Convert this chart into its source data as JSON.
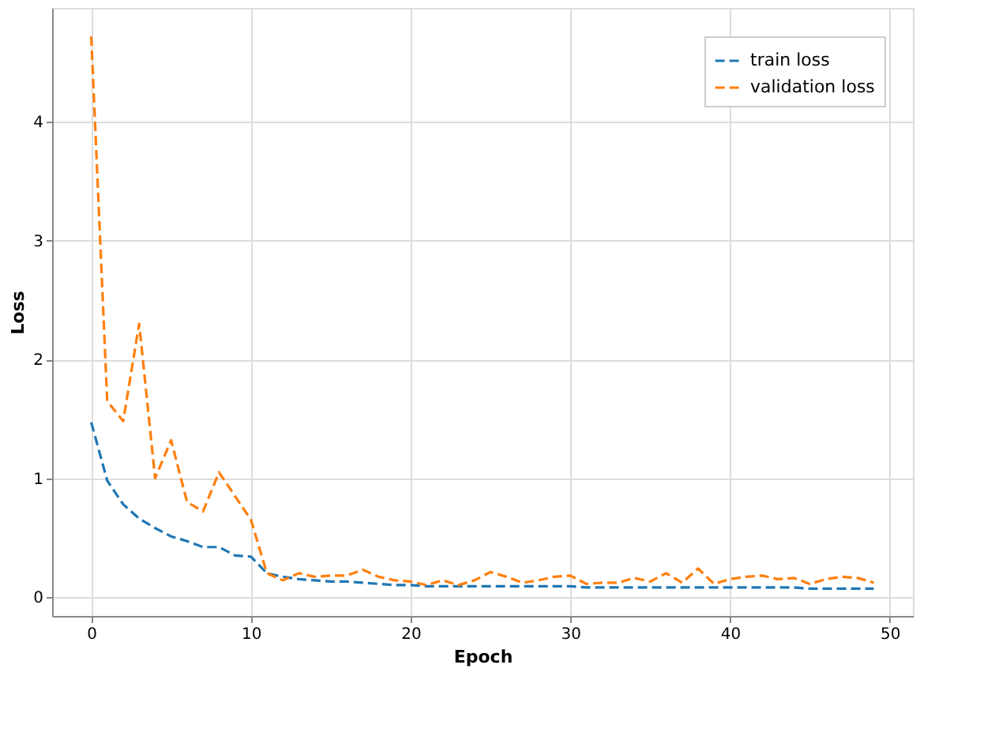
{
  "chart_data": {
    "type": "line",
    "xlabel": "Epoch",
    "ylabel": "Loss",
    "x": [
      0,
      1,
      2,
      3,
      4,
      5,
      6,
      7,
      8,
      9,
      10,
      11,
      12,
      13,
      14,
      15,
      16,
      17,
      18,
      19,
      20,
      21,
      22,
      23,
      24,
      25,
      26,
      27,
      28,
      29,
      30,
      31,
      32,
      33,
      34,
      35,
      36,
      37,
      38,
      39,
      40,
      41,
      42,
      43,
      44,
      45,
      46,
      47,
      48,
      49
    ],
    "series": [
      {
        "name": "train loss",
        "color": "#1f77b4",
        "values": [
          1.47,
          0.98,
          0.78,
          0.66,
          0.58,
          0.51,
          0.47,
          0.42,
          0.42,
          0.35,
          0.34,
          0.2,
          0.17,
          0.15,
          0.14,
          0.13,
          0.13,
          0.12,
          0.11,
          0.1,
          0.1,
          0.09,
          0.09,
          0.09,
          0.09,
          0.09,
          0.09,
          0.09,
          0.09,
          0.09,
          0.09,
          0.08,
          0.08,
          0.08,
          0.08,
          0.08,
          0.08,
          0.08,
          0.08,
          0.08,
          0.08,
          0.08,
          0.08,
          0.08,
          0.08,
          0.07,
          0.07,
          0.07,
          0.07,
          0.07
        ]
      },
      {
        "name": "validation loss",
        "color": "#ff7f0e",
        "values": [
          4.72,
          1.65,
          1.48,
          2.3,
          1.0,
          1.32,
          0.8,
          0.72,
          1.05,
          0.85,
          0.65,
          0.2,
          0.14,
          0.2,
          0.17,
          0.18,
          0.18,
          0.23,
          0.17,
          0.14,
          0.13,
          0.1,
          0.14,
          0.1,
          0.14,
          0.21,
          0.17,
          0.12,
          0.14,
          0.17,
          0.18,
          0.11,
          0.12,
          0.12,
          0.16,
          0.13,
          0.2,
          0.12,
          0.24,
          0.11,
          0.15,
          0.17,
          0.18,
          0.15,
          0.16,
          0.11,
          0.15,
          0.17,
          0.16,
          0.12
        ]
      }
    ],
    "xlim": [
      -2.45,
      51.45
    ],
    "xticks": [
      0,
      10,
      20,
      30,
      40,
      50
    ],
    "ylim": [
      -0.16,
      4.96
    ],
    "yticks": [
      0,
      1,
      2,
      3,
      4
    ],
    "grid": true,
    "legend": "top right",
    "line_style": "dashed",
    "marker": "none"
  }
}
